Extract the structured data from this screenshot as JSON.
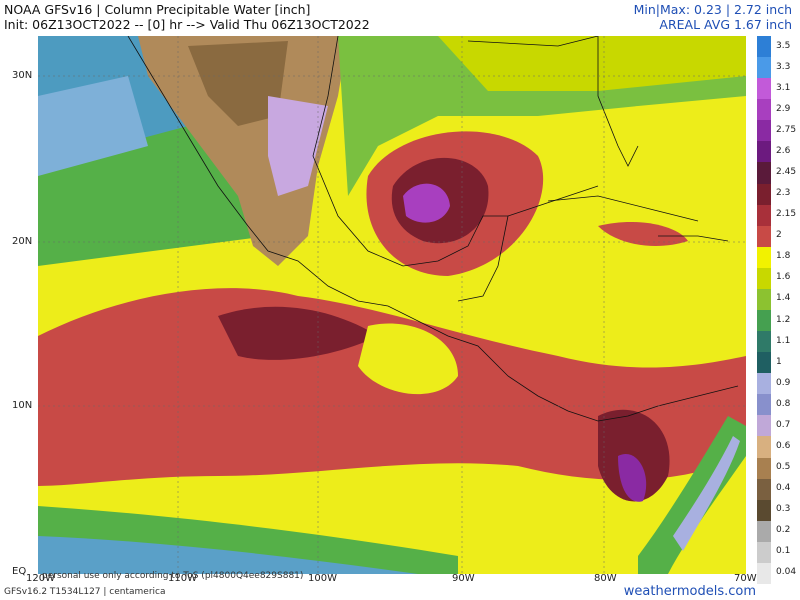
{
  "header": {
    "title": "NOAA GFSv16 | Column Precipitable Water [inch]",
    "init": "Init: 06Z13OCT2022 -- [0] hr --> Valid Thu 06Z13OCT2022",
    "minmax": "Min|Max: 0.23 | 2.72 inch",
    "areal": "AREAL AVG 1.67 inch"
  },
  "axes": {
    "lat_labels": [
      "30N",
      "20N",
      "10N",
      "EQ"
    ],
    "lon_labels": [
      "120W",
      "110W",
      "100W",
      "90W",
      "80W",
      "70W"
    ]
  },
  "footer": {
    "license": "personal use only according to ToS (pl4800Q4ee829S881)",
    "model": "GFSv16.2 T1534L127 | centamerica",
    "credit": "weathermodels.com"
  },
  "colorbar": {
    "labels": [
      "3.5",
      "3.3",
      "3.1",
      "2.9",
      "2.75",
      "2.6",
      "2.45",
      "2.3",
      "2.15",
      "2",
      "1.8",
      "1.6",
      "1.4",
      "1.2",
      "1.1",
      "1",
      "0.9",
      "0.8",
      "0.7",
      "0.6",
      "0.5",
      "0.4",
      "0.3",
      "0.2",
      "0.1",
      "0.04"
    ],
    "colors": [
      "#2d7fd6",
      "#4a9ae8",
      "#c25ad9",
      "#a83fbf",
      "#8a2aa3",
      "#6c1a7f",
      "#5a1a3a",
      "#7a1f2e",
      "#a8303a",
      "#c84a46",
      "#f2f200",
      "#c8d800",
      "#8cc230",
      "#45a050",
      "#2f7a68",
      "#1f5f62",
      "#a8b0e0",
      "#8890cc",
      "#c0a8d8",
      "#d8b080",
      "#a88050",
      "#7a6040",
      "#5a4a30",
      "#aaaaaa",
      "#cccccc",
      "#e8e8e8"
    ]
  }
}
